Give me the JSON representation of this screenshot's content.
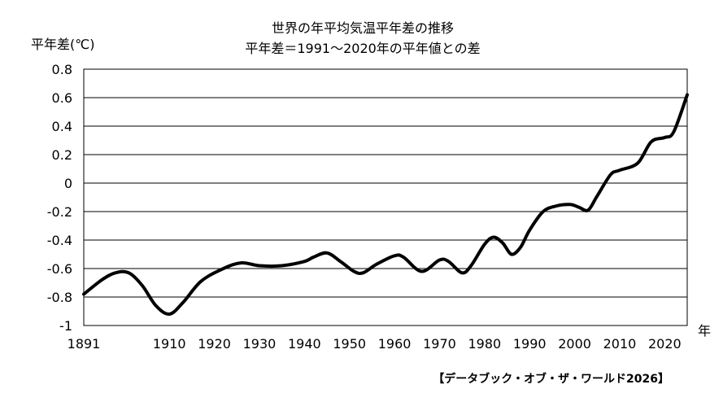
{
  "chart_data": {
    "type": "line",
    "title": "世界の年平均気温平年差の推移",
    "subtitle": "平年差＝1991～2020年の平年値との差",
    "ylabel": "平年差(℃)",
    "xlabel": "年",
    "source": "【データブック・オブ・ザ・ワールド2026】",
    "xlim": [
      1891,
      2025
    ],
    "ylim": [
      -1,
      0.8
    ],
    "x_ticks": [
      1891,
      1910,
      1920,
      1930,
      1940,
      1950,
      1960,
      1970,
      1980,
      1990,
      2000,
      2010,
      2020
    ],
    "x_tick_labels": [
      "1891",
      "1910",
      "1920",
      "1930",
      "1940",
      "1950",
      "1960",
      "1970",
      "1980",
      "1990",
      "2000",
      "2010",
      "2020"
    ],
    "y_ticks": [
      0.8,
      0.6,
      0.4,
      0.2,
      0,
      -0.2,
      -0.4,
      -0.6,
      -0.8,
      -1
    ],
    "y_tick_labels": [
      "0.8",
      "0.6",
      "0.4",
      "0.2",
      "0",
      "-0.2",
      "-0.4",
      "-0.6",
      "-0.8",
      "-1"
    ],
    "grid": true,
    "line_color": "#000000",
    "series": [
      {
        "x": [
          1891,
          1895,
          1898,
          1901,
          1904,
          1907,
          1910,
          1913,
          1917,
          1922,
          1926,
          1930,
          1935,
          1940,
          1942,
          1945,
          1948,
          1951,
          1953,
          1956,
          1960,
          1962,
          1966,
          1970,
          1972,
          1975,
          1977,
          1980,
          1982,
          1984,
          1986,
          1988,
          1990,
          1993,
          1996,
          1999,
          2001,
          2003,
          2005,
          2008,
          2010,
          2014,
          2017,
          2020,
          2022,
          2025
        ],
        "y": [
          -0.78,
          -0.68,
          -0.63,
          -0.63,
          -0.72,
          -0.86,
          -0.92,
          -0.84,
          -0.69,
          -0.6,
          -0.56,
          -0.58,
          -0.58,
          -0.55,
          -0.52,
          -0.49,
          -0.55,
          -0.62,
          -0.63,
          -0.57,
          -0.51,
          -0.52,
          -0.62,
          -0.54,
          -0.55,
          -0.63,
          -0.58,
          -0.43,
          -0.38,
          -0.42,
          -0.5,
          -0.45,
          -0.33,
          -0.2,
          -0.16,
          -0.15,
          -0.17,
          -0.19,
          -0.09,
          0.06,
          0.09,
          0.14,
          0.29,
          0.32,
          0.36,
          0.62
        ]
      }
    ]
  }
}
